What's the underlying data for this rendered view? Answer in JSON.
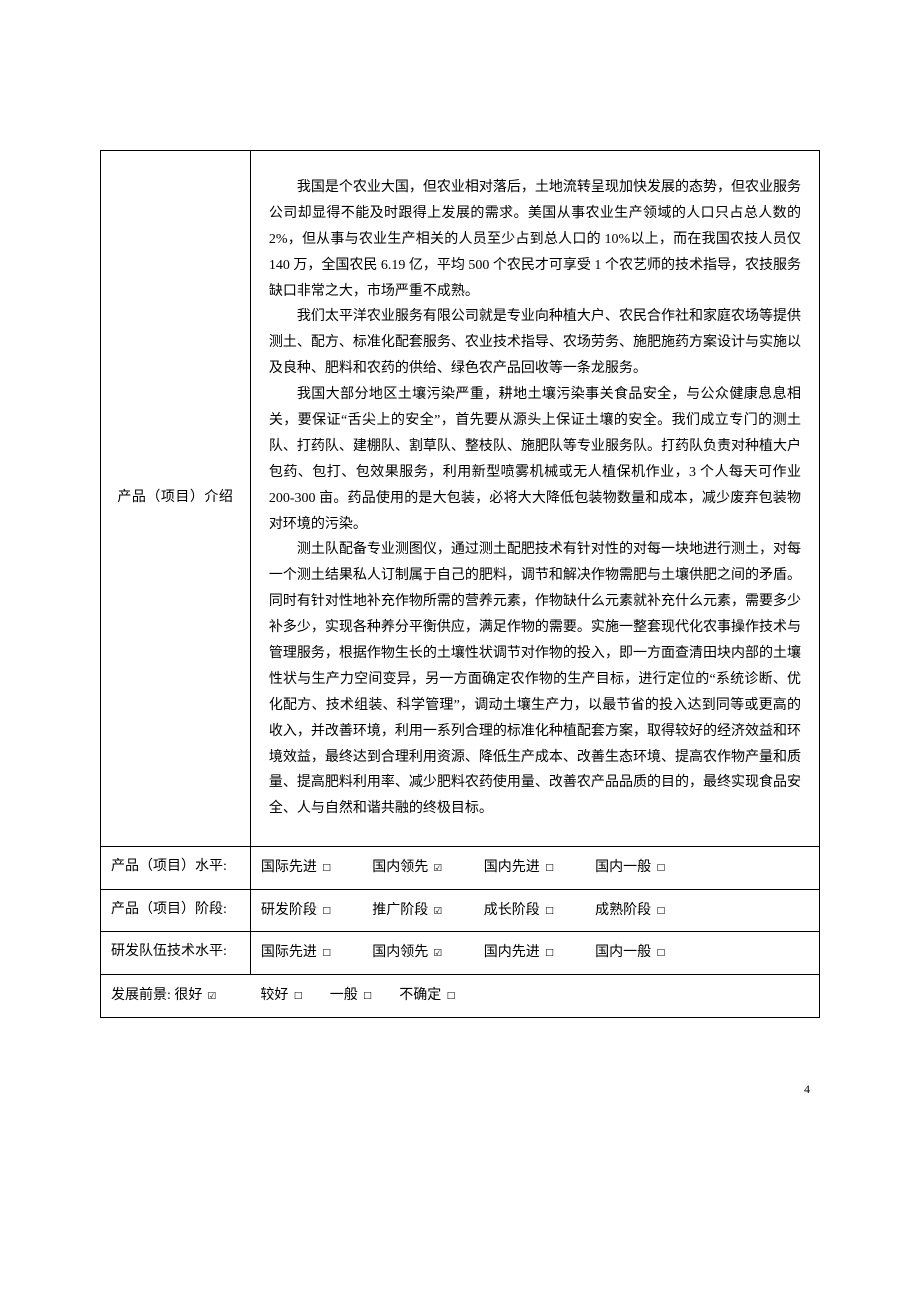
{
  "colors": {
    "text": "#000000",
    "border": "#000000",
    "background": "#ffffff"
  },
  "typography": {
    "fontFamily": "SimSun",
    "fontSize": 14,
    "lineHeight": 1.9
  },
  "checkbox": {
    "unchecked": "☐",
    "checked": "☑"
  },
  "introLabel": "产品（项目）介绍",
  "introParagraphs": [
    "我国是个农业大国，但农业相对落后，土地流转呈现加快发展的态势，但农业服务公司却显得不能及时跟得上发展的需求。美国从事农业生产领域的人口只占总人数的 2%，但从事与农业生产相关的人员至少占到总人口的 10%以上，而在我国农技人员仅 140 万，全国农民 6.19 亿，平均 500 个农民才可享受 1 个农艺师的技术指导，农技服务缺口非常之大，市场严重不成熟。",
    "我们太平洋农业服务有限公司就是专业向种植大户、农民合作社和家庭农场等提供测土、配方、标准化配套服务、农业技术指导、农场劳务、施肥施药方案设计与实施以及良种、肥料和农药的供给、绿色农产品回收等一条龙服务。",
    "我国大部分地区土壤污染严重，耕地土壤污染事关食品安全，与公众健康息息相关，要保证“舌尖上的安全”，首先要从源头上保证土壤的安全。我们成立专门的测土队、打药队、建棚队、割草队、整枝队、施肥队等专业服务队。打药队负责对种植大户包药、包打、包效果服务，利用新型喷雾机械或无人植保机作业，3 个人每天可作业 200-300 亩。药品使用的是大包装，必将大大降低包装物数量和成本，减少废弃包装物对环境的污染。",
    "测土队配备专业测图仪，通过测土配肥技术有针对性的对每一块地进行测土，对每一个测土结果私人订制属于自己的肥料，调节和解决作物需肥与土壤供肥之间的矛盾。同时有针对性地补充作物所需的营养元素，作物缺什么元素就补充什么元素，需要多少补多少，实现各种养分平衡供应，满足作物的需要。实施一整套现代化农事操作技术与管理服务，根据作物生长的土壤性状调节对作物的投入，即一方面查清田块内部的土壤性状与生产力空间变异，另一方面确定农作物的生产目标，进行定位的“系统诊断、优化配方、技术组装、科学管理”，调动土壤生产力，以最节省的投入达到同等或更高的收入，并改善环境，利用一系列合理的标准化种植配套方案，取得较好的经济效益和环境效益，最终达到合理利用资源、降低生产成本、改善生态环境、提高农作物产量和质量、提高肥料利用率、减少肥料农药使用量、改善农产品品质的目的，最终实现食品安全、人与自然和谐共融的终极目标。"
  ],
  "levelRow": {
    "label": "产品（项目）水平:",
    "options": [
      {
        "text": "国际先进",
        "checked": false
      },
      {
        "text": "国内领先",
        "checked": true
      },
      {
        "text": "国内先进",
        "checked": false
      },
      {
        "text": "国内一般",
        "checked": false
      }
    ]
  },
  "stageRow": {
    "label": "产品（项目）阶段:",
    "options": [
      {
        "text": "研发阶段",
        "checked": false
      },
      {
        "text": "推广阶段",
        "checked": true
      },
      {
        "text": "成长阶段",
        "checked": false
      },
      {
        "text": "成熟阶段",
        "checked": false
      }
    ]
  },
  "teamRow": {
    "label": "研发队伍技术水平:",
    "options": [
      {
        "text": "国际先进",
        "checked": false
      },
      {
        "text": "国内领先",
        "checked": true
      },
      {
        "text": "国内先进",
        "checked": false
      },
      {
        "text": "国内一般",
        "checked": false
      }
    ]
  },
  "prospectRow": {
    "label": "发展前景:",
    "options": [
      {
        "text": "很好",
        "checked": true
      },
      {
        "text": "较好",
        "checked": false
      },
      {
        "text": "一般",
        "checked": false
      },
      {
        "text": "不确定",
        "checked": false
      }
    ]
  },
  "pageNumber": "4"
}
